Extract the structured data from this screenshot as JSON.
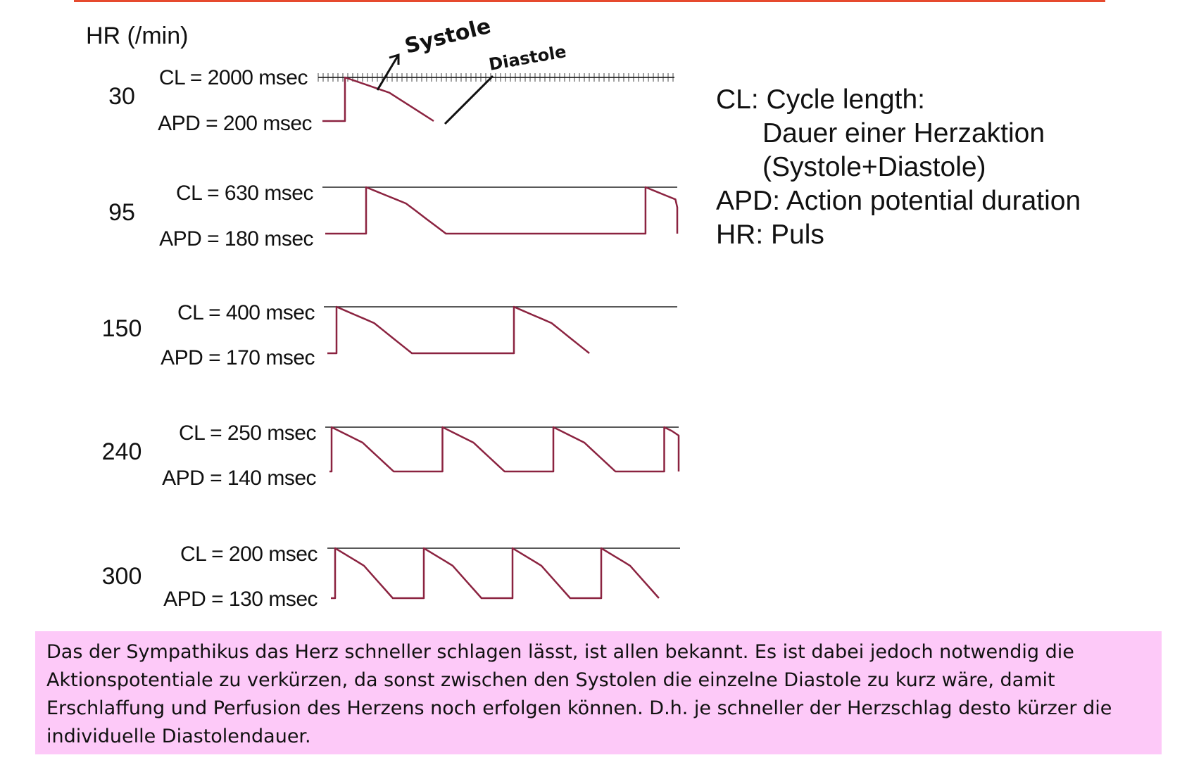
{
  "header": {
    "hr_label": "HR (/min)"
  },
  "rows": [
    {
      "hr": "30",
      "cl": "CL = 2000 msec",
      "apd": "APD = 200 msec",
      "cl_ms": 2000,
      "apd_ms": 200
    },
    {
      "hr": "95",
      "cl": "CL = 630 msec",
      "apd": "APD = 180 msec",
      "cl_ms": 630,
      "apd_ms": 180
    },
    {
      "hr": "150",
      "cl": "CL = 400 msec",
      "apd": "APD = 170 msec",
      "cl_ms": 400,
      "apd_ms": 170
    },
    {
      "hr": "240",
      "cl": "CL = 250 msec",
      "apd": "APD = 140 msec",
      "cl_ms": 250,
      "apd_ms": 140
    },
    {
      "hr": "300",
      "cl": "CL = 200 msec",
      "apd": "APD = 130 msec",
      "cl_ms": 200,
      "apd_ms": 130
    }
  ],
  "annotations": {
    "systole": "Systole",
    "diastole": "Diastole"
  },
  "legend": {
    "line1": "CL: Cycle length:",
    "line2": "Dauer einer Herzaktion",
    "line3": "(Systole+Diastole)",
    "line4": "APD: Action potential duration",
    "line5": "HR: Puls"
  },
  "note": {
    "text": "Das der Sympathikus das Herz schneller schlagen lässt, ist allen bekannt. Es ist dabei jedoch notwendig die Aktionspotentiale zu verkürzen, da sonst zwischen den Systolen die einzelne Diastole zu kurz wäre, damit Erschlaffung und Perfusion des Herzens noch erfolgen können. D.h. je schneller der Herzschlag desto kürzer die individuelle Diastolendauer."
  },
  "colors": {
    "trace": "#8b2340",
    "accent_line": "#e64a2e",
    "note_bg": "#fdc9f8"
  }
}
